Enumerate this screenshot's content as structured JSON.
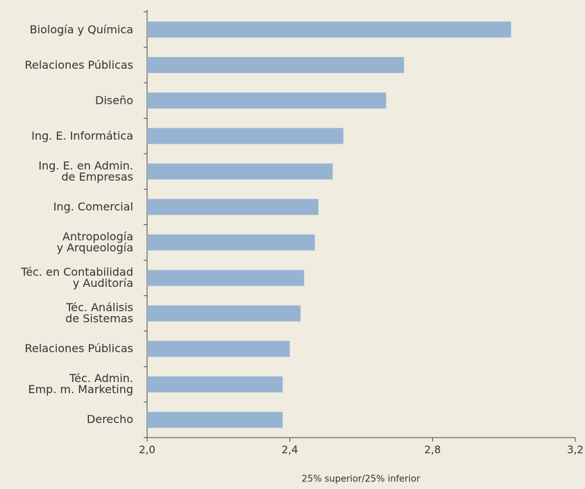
{
  "chart_data": {
    "type": "barh",
    "categories": [
      "Biología y Química",
      "Relaciones Públicas",
      "Diseño",
      "Ing. E. Informática",
      "Ing. E. en Admin.\nde Empresas",
      "Ing. Comercial",
      "Antropología\ny Arqueología",
      "Téc. en Contabilidad\ny Auditoría",
      "Téc. Análisis\nde Sistemas",
      "Relaciones Públicas",
      "Téc. Admin.\nEmp. m. Marketing",
      "Derecho"
    ],
    "values": [
      3.02,
      2.72,
      2.67,
      2.55,
      2.52,
      2.48,
      2.47,
      2.44,
      2.43,
      2.4,
      2.38,
      2.38
    ],
    "color": "#96b3d2",
    "xlabel": "25% superior/25% inferior",
    "xlim": [
      2.0,
      3.2
    ],
    "xticks": [
      {
        "value": 2.0,
        "label": "2,0"
      },
      {
        "value": 2.4,
        "label": "2,4"
      },
      {
        "value": 2.8,
        "label": "2,8"
      },
      {
        "value": 3.2,
        "label": "3,2"
      }
    ]
  }
}
